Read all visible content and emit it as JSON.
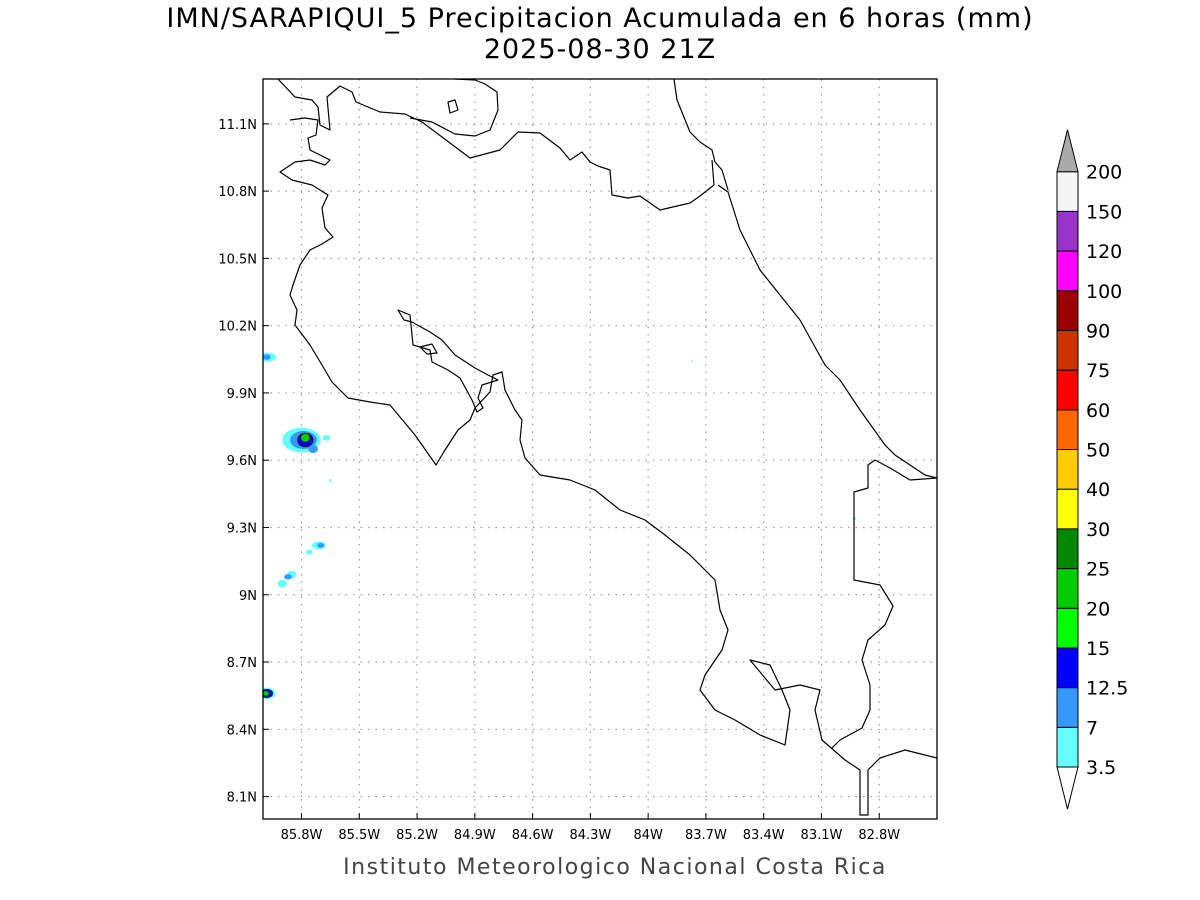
{
  "title_line1": "IMN/SARAPIQUI_5 Precipitacion Acumulada en 6 horas (mm)",
  "title_line2": "2025-08-30 21Z",
  "credit": "Instituto Meteorologico Nacional Costa Rica",
  "map": {
    "lon_range": [
      -86.0,
      -82.5
    ],
    "lat_range": [
      8.0,
      11.3
    ],
    "grid": true,
    "x_ticks": [
      {
        "lon": -85.8,
        "label": "85.8W"
      },
      {
        "lon": -85.5,
        "label": "85.5W"
      },
      {
        "lon": -85.2,
        "label": "85.2W"
      },
      {
        "lon": -84.9,
        "label": "84.9W"
      },
      {
        "lon": -84.6,
        "label": "84.6W"
      },
      {
        "lon": -84.3,
        "label": "84.3W"
      },
      {
        "lon": -84.0,
        "label": "84W"
      },
      {
        "lon": -83.7,
        "label": "83.7W"
      },
      {
        "lon": -83.4,
        "label": "83.4W"
      },
      {
        "lon": -83.1,
        "label": "83.1W"
      },
      {
        "lon": -82.8,
        "label": "82.8W"
      }
    ],
    "y_ticks": [
      {
        "lat": 11.1,
        "label": "11.1N"
      },
      {
        "lat": 10.8,
        "label": "10.8N"
      },
      {
        "lat": 10.5,
        "label": "10.5N"
      },
      {
        "lat": 10.2,
        "label": "10.2N"
      },
      {
        "lat": 9.9,
        "label": "9.9N"
      },
      {
        "lat": 9.6,
        "label": "9.6N"
      },
      {
        "lat": 9.3,
        "label": "9.3N"
      },
      {
        "lat": 9.0,
        "label": "9N"
      },
      {
        "lat": 8.7,
        "label": "8.7N"
      },
      {
        "lat": 8.4,
        "label": "8.4N"
      },
      {
        "lat": 8.1,
        "label": "8.1N"
      }
    ],
    "precip_cells": [
      {
        "lon": -85.98,
        "lat": 10.06,
        "rx": 0.05,
        "ry": 0.02,
        "level": 3.5
      },
      {
        "lon": -85.98,
        "lat": 10.06,
        "rx": 0.02,
        "ry": 0.012,
        "level": 7
      },
      {
        "lon": -85.8,
        "lat": 9.69,
        "rx": 0.1,
        "ry": 0.055,
        "level": 3.5
      },
      {
        "lon": -85.79,
        "lat": 9.69,
        "rx": 0.07,
        "ry": 0.04,
        "level": 7
      },
      {
        "lon": -85.78,
        "lat": 9.69,
        "rx": 0.04,
        "ry": 0.03,
        "level": 12.5
      },
      {
        "lon": -85.78,
        "lat": 9.7,
        "rx": 0.025,
        "ry": 0.02,
        "level": 20
      },
      {
        "lon": -85.74,
        "lat": 9.65,
        "rx": 0.025,
        "ry": 0.018,
        "level": 7
      },
      {
        "lon": -85.67,
        "lat": 9.7,
        "rx": 0.02,
        "ry": 0.012,
        "level": 3.5
      },
      {
        "lon": -85.71,
        "lat": 9.22,
        "rx": 0.035,
        "ry": 0.018,
        "level": 3.5
      },
      {
        "lon": -85.7,
        "lat": 9.22,
        "rx": 0.018,
        "ry": 0.011,
        "level": 7
      },
      {
        "lon": -85.76,
        "lat": 9.19,
        "rx": 0.018,
        "ry": 0.011,
        "level": 3.5
      },
      {
        "lon": -85.85,
        "lat": 9.09,
        "rx": 0.025,
        "ry": 0.017,
        "level": 3.5
      },
      {
        "lon": -85.9,
        "lat": 9.05,
        "rx": 0.025,
        "ry": 0.017,
        "level": 3.5
      },
      {
        "lon": -85.87,
        "lat": 9.08,
        "rx": 0.02,
        "ry": 0.012,
        "level": 7
      },
      {
        "lon": -85.98,
        "lat": 8.56,
        "rx": 0.045,
        "ry": 0.025,
        "level": 3.5
      },
      {
        "lon": -85.98,
        "lat": 8.56,
        "rx": 0.03,
        "ry": 0.018,
        "level": 12.5
      },
      {
        "lon": -85.985,
        "lat": 8.56,
        "rx": 0.018,
        "ry": 0.012,
        "level": 20
      },
      {
        "lon": -85.65,
        "lat": 9.51,
        "rx": 0.006,
        "ry": 0.006,
        "level": 3.5
      },
      {
        "lon": -83.77,
        "lat": 10.04,
        "rx": 0.005,
        "ry": 0.005,
        "level": 3.5
      },
      {
        "lon": -82.93,
        "lat": 9.34,
        "rx": 0.008,
        "ry": 0.008,
        "level": 3.5
      }
    ]
  },
  "colorbar": {
    "levels": [
      {
        "label": "3.5",
        "color": "#66ffff"
      },
      {
        "label": "7",
        "color": "#3399ff"
      },
      {
        "label": "12.5",
        "color": "#0000ff"
      },
      {
        "label": "15",
        "color": "#00ff00"
      },
      {
        "label": "20",
        "color": "#00cc00"
      },
      {
        "label": "25",
        "color": "#008800"
      },
      {
        "label": "30",
        "color": "#ffff00"
      },
      {
        "label": "40",
        "color": "#ffcc00"
      },
      {
        "label": "50",
        "color": "#ff6600"
      },
      {
        "label": "60",
        "color": "#ff0000"
      },
      {
        "label": "75",
        "color": "#cc3300"
      },
      {
        "label": "90",
        "color": "#990000"
      },
      {
        "label": "100",
        "color": "#ff00ff"
      },
      {
        "label": "120",
        "color": "#9933cc"
      },
      {
        "label": "150",
        "color": "#f5f5f5"
      },
      {
        "label": "200",
        "color": "#aaaaaa"
      }
    ]
  }
}
